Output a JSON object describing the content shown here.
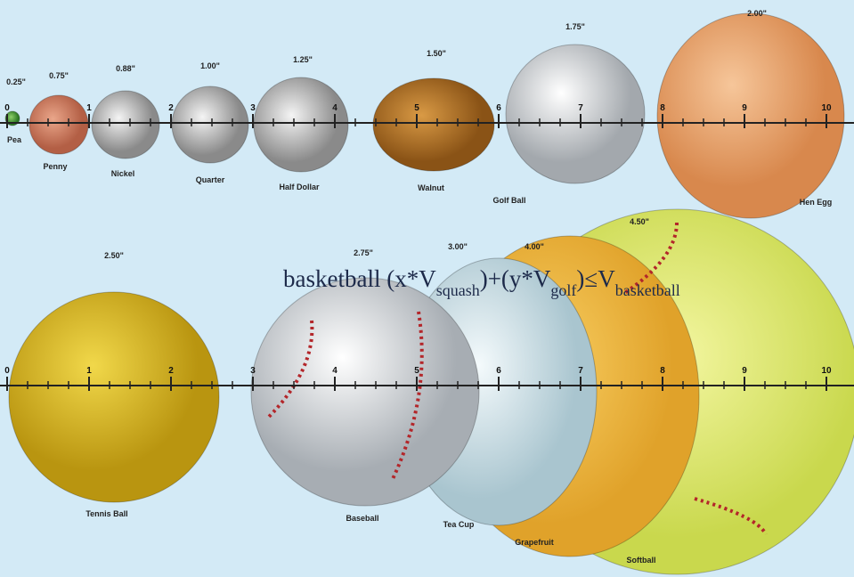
{
  "objects": [
    {
      "size": "0.25\"",
      "name": "Pea"
    },
    {
      "size": "0.75\"",
      "name": "Penny"
    },
    {
      "size": "0.88\"",
      "name": "Nickel"
    },
    {
      "size": "1.00\"",
      "name": "Quarter"
    },
    {
      "size": "1.25\"",
      "name": "Half Dollar"
    },
    {
      "size": "1.50\"",
      "name": "Walnut"
    },
    {
      "size": "1.75\"",
      "name": "Golf Ball"
    },
    {
      "size": "2.00\"",
      "name": "Hen Egg"
    },
    {
      "size": "2.50\"",
      "name": "Tennis Ball"
    },
    {
      "size": "2.75\"",
      "name": "Baseball"
    },
    {
      "size": "3.00\"",
      "name": "Tea Cup"
    },
    {
      "size": "4.00\"",
      "name": "Grapefruit"
    },
    {
      "size": "4.50\"",
      "name": "Softball"
    }
  ],
  "rulers": {
    "top": [
      0,
      1,
      2,
      3,
      4,
      5,
      6,
      7,
      8,
      9,
      10
    ],
    "bottom": [
      0,
      1,
      2,
      3,
      4,
      5,
      6,
      7,
      8,
      9,
      10
    ]
  },
  "formula": {
    "parts": [
      {
        "text": "basketball (x*V"
      },
      {
        "sub": "squash"
      },
      {
        "text": ")+(y*V"
      },
      {
        "sub": "golf"
      },
      {
        "text": ")≤V"
      },
      {
        "sub": "basketball"
      }
    ]
  }
}
